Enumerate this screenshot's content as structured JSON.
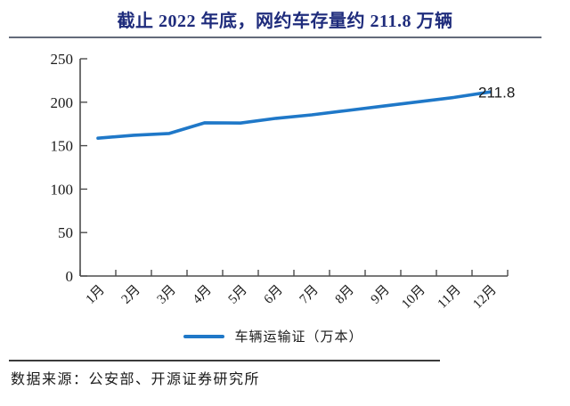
{
  "title": "截止 2022 年底，网约车存量约 211.8 万辆",
  "source": "数据来源：公安部、开源证券研究所",
  "legend": {
    "label": "车辆运输证（万本）"
  },
  "colors": {
    "line": "#1F78C8",
    "title": "#1F2C7C",
    "axis": "#4d4d4d",
    "text": "#1a1a1a"
  },
  "chart_data": {
    "type": "line",
    "title": "截止 2022 年底，网约车存量约 211.8 万辆",
    "categories": [
      "1月",
      "2月",
      "3月",
      "4月",
      "5月",
      "6月",
      "7月",
      "8月",
      "9月",
      "10月",
      "11月",
      "12月"
    ],
    "series": [
      {
        "name": "车辆运输证（万本）",
        "values": [
          158.6,
          162.0,
          164.0,
          176.3,
          176.0,
          181.5,
          185.5,
          190.5,
          195.5,
          200.5,
          205.5,
          211.8
        ]
      }
    ],
    "ylim": [
      0,
      250
    ],
    "yticks": [
      0,
      50,
      100,
      150,
      200,
      250
    ],
    "xlabel": "",
    "ylabel": "",
    "grid": false,
    "legend_position": "bottom",
    "annotation": {
      "text": "211.8",
      "at_category": "12月"
    }
  }
}
